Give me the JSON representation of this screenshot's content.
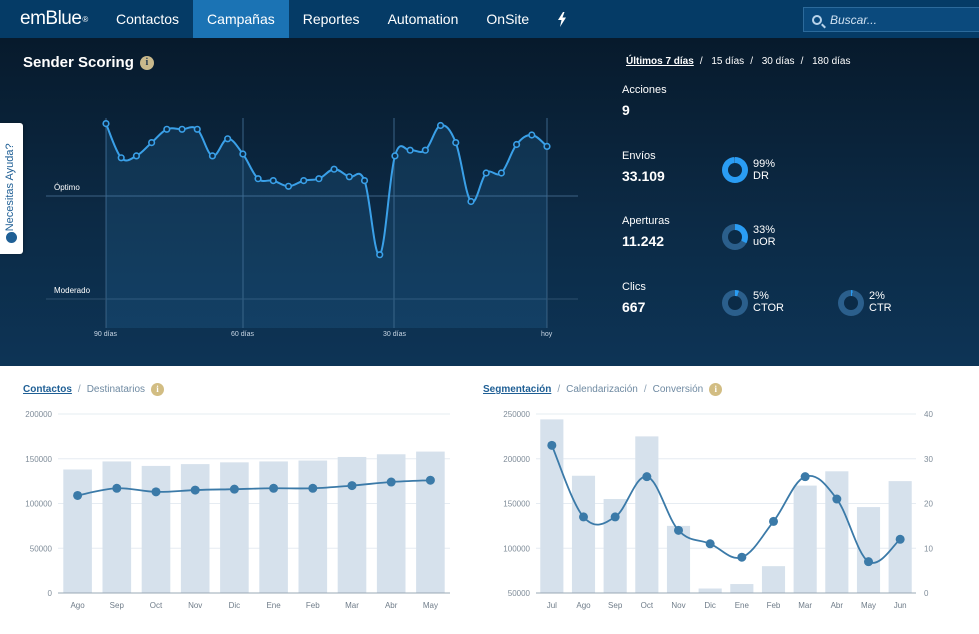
{
  "app": {
    "logo": "emBlue",
    "logo_mark": "®"
  },
  "nav": {
    "items": [
      {
        "label": "Contactos",
        "active": false
      },
      {
        "label": "Campañas",
        "active": true
      },
      {
        "label": "Reportes",
        "active": false
      },
      {
        "label": "Automation",
        "active": false
      },
      {
        "label": "OnSite",
        "active": false
      }
    ],
    "bolt_icon": "lightning-icon",
    "search_placeholder": "Buscar..."
  },
  "help": {
    "label": "¿Necesitas Ayuda?"
  },
  "hero": {
    "title": "Sender Scoring",
    "ranges": [
      {
        "label": "Últimos 7 días",
        "active": true
      },
      {
        "label": "15 días",
        "active": false
      },
      {
        "label": "30 días",
        "active": false
      },
      {
        "label": "180 días",
        "active": false
      }
    ],
    "colors": {
      "line": "#3aa0e8",
      "accent": "#2a9df4",
      "donut_track": "#2b5f8c"
    }
  },
  "score_chart": {
    "type": "line",
    "levels": [
      "Óptimo",
      "Moderado"
    ],
    "x_ticks": [
      "90 días",
      "60 días",
      "30 días",
      "hoy"
    ],
    "values": [
      96,
      78,
      79,
      86,
      93,
      93,
      93,
      79,
      88,
      80,
      67,
      66,
      63,
      66,
      67,
      72,
      68,
      66,
      27,
      79,
      82,
      82,
      95,
      86,
      55,
      70,
      70,
      85,
      90,
      84
    ]
  },
  "stats": {
    "acciones": {
      "label": "Acciones",
      "value": "9"
    },
    "envios": {
      "label": "Envíos",
      "value": "33.109",
      "donut": {
        "pct": 99,
        "text": "99%",
        "name": "DR"
      }
    },
    "aperturas": {
      "label": "Aperturas",
      "value": "11.242",
      "donut": {
        "pct": 33,
        "text": "33%",
        "name": "uOR"
      }
    },
    "clics": {
      "label": "Clics",
      "value": "667",
      "donuts": [
        {
          "pct": 5,
          "text": "5%",
          "name": "CTOR"
        },
        {
          "pct": 2,
          "text": "2%",
          "name": "CTR"
        }
      ]
    }
  },
  "contacts_panel": {
    "tabs": [
      "Contactos",
      "Destinatarios"
    ],
    "active_tab": 0
  },
  "segment_panel": {
    "tabs": [
      "Segmentación",
      "Calendarización",
      "Conversión"
    ],
    "active_tab": 0
  },
  "chart_data": [
    {
      "type": "bar",
      "categories": [
        "Ago",
        "Sep",
        "Oct",
        "Nov",
        "Dic",
        "Ene",
        "Feb",
        "Mar",
        "Abr",
        "May"
      ],
      "series": [
        {
          "type": "bar",
          "values": [
            138000,
            147000,
            142000,
            144000,
            146000,
            147000,
            148000,
            152000,
            155000,
            158000
          ]
        },
        {
          "type": "line",
          "values": [
            109000,
            117000,
            113000,
            115000,
            116000,
            117000,
            117000,
            120000,
            124000,
            126000
          ]
        }
      ],
      "ylim": [
        0,
        200000
      ],
      "yticks": [
        0,
        50000,
        100000,
        150000,
        200000
      ],
      "colors": {
        "bar": "#d6e1ec",
        "line": "#3b7aa8"
      }
    },
    {
      "type": "bar",
      "categories": [
        "Jul",
        "Ago",
        "Sep",
        "Oct",
        "Nov",
        "Dic",
        "Ene",
        "Feb",
        "Mar",
        "Abr",
        "May",
        "Jun"
      ],
      "series": [
        {
          "type": "bar",
          "axis": "left",
          "values": [
            244000,
            181000,
            155000,
            225000,
            125000,
            55000,
            60000,
            80000,
            170000,
            186000,
            146000,
            175000
          ]
        },
        {
          "type": "line",
          "axis": "right",
          "values": [
            33,
            17,
            17,
            26,
            14,
            11,
            8,
            16,
            26,
            21,
            7,
            12
          ]
        }
      ],
      "ylim": [
        50000,
        250000
      ],
      "yticks": [
        50000,
        100000,
        150000,
        200000,
        250000
      ],
      "y2lim": [
        0,
        40
      ],
      "y2ticks": [
        0,
        10,
        20,
        30,
        40
      ],
      "colors": {
        "bar": "#d6e1ec",
        "line": "#3b7aa8"
      }
    }
  ]
}
